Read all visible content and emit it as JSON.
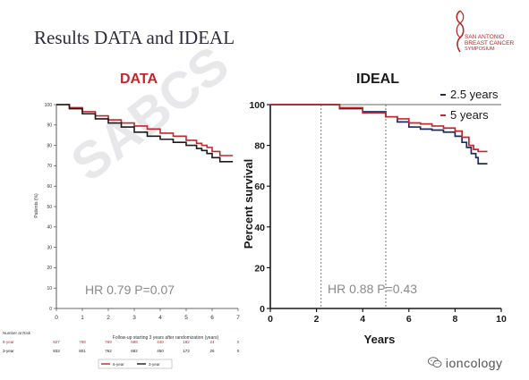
{
  "slide": {
    "title": "Results DATA and IDEAL",
    "watermark": "SABCS",
    "logo": {
      "line1": "SAN ANTONIO",
      "line2": "BREAST CANCER",
      "line3": "SYMPOSIUM"
    },
    "social": {
      "text": "ioncology",
      "icon": "wechat-icon"
    }
  },
  "colors": {
    "red": "#c0282d",
    "black": "#1a1a1a",
    "navy": "#1f2a5e",
    "hrText": "#8a8a8a",
    "title": "#2b2b3a"
  },
  "chart_data": [
    {
      "type": "line",
      "title": "DATA",
      "xlabel": "Follow-up starting 3 years after randomization (years)",
      "ylabel": "Patients (%)",
      "xlim": [
        0,
        7
      ],
      "ylim": [
        0,
        100
      ],
      "x_ticks": [
        "0",
        "1",
        "2",
        "3",
        "4",
        "5",
        "6",
        "7"
      ],
      "y_ticks": [
        "0",
        "10",
        "20",
        "30",
        "40",
        "50",
        "60",
        "70",
        "80",
        "90",
        "100"
      ],
      "annotation": "HR 0.79  P=0.07",
      "series": [
        {
          "name": "6-year",
          "color": "#c0282d",
          "x": [
            0,
            0.5,
            1,
            1.5,
            2,
            2.5,
            3,
            3.5,
            4,
            4.5,
            5,
            5.4,
            5.6,
            5.8,
            6,
            6.3,
            6.5,
            6.8
          ],
          "y": [
            100,
            98.5,
            96.5,
            94.5,
            92.5,
            91,
            89.5,
            88,
            86,
            84.5,
            82.5,
            81,
            80,
            79,
            77,
            75,
            75,
            75
          ]
        },
        {
          "name": "3-year",
          "color": "#1a1a1a",
          "x": [
            0,
            0.5,
            1,
            1.5,
            2,
            2.5,
            3,
            3.5,
            4,
            4.5,
            5,
            5.4,
            5.6,
            5.8,
            6,
            6.3,
            6.5,
            6.8
          ],
          "y": [
            100,
            98,
            95.5,
            93,
            91,
            89,
            86.5,
            84.5,
            83,
            81.5,
            80,
            78.5,
            77.5,
            76,
            74,
            72,
            72,
            72
          ]
        }
      ],
      "risk_table": {
        "header": "Number at Risk",
        "rows": [
          {
            "label": "6-year",
            "values": [
              "827",
              "798",
              "769",
              "698",
              "440",
              "182",
              "24",
              "0"
            ]
          },
          {
            "label": "3-year",
            "values": [
              "833",
              "801",
              "762",
              "682",
              "450",
              "173",
              "26",
              "0"
            ]
          }
        ]
      },
      "legend": [
        "6-year",
        "3-year"
      ]
    },
    {
      "type": "line",
      "title": "IDEAL",
      "xlabel": "Years",
      "ylabel": "Percent survival",
      "xlim": [
        0,
        10
      ],
      "ylim": [
        0,
        100
      ],
      "x_ticks": [
        "0",
        "2",
        "4",
        "6",
        "8",
        "10"
      ],
      "y_ticks": [
        "0",
        "20",
        "40",
        "60",
        "80",
        "100"
      ],
      "vlines": [
        2.2,
        5.0
      ],
      "annotation": "HR 0.88  P=0.43",
      "series": [
        {
          "name": "2.5 years",
          "color": "#1f2a5e",
          "x": [
            0,
            2.2,
            3,
            4,
            5,
            5.5,
            6,
            6.5,
            7,
            7.5,
            8,
            8.3,
            8.5,
            8.7,
            8.9,
            9.0,
            9.4
          ],
          "y": [
            100,
            100,
            98,
            96.5,
            94,
            91.5,
            89,
            88,
            87.5,
            86.5,
            84.5,
            81.5,
            79,
            76,
            74,
            71,
            71
          ]
        },
        {
          "name": "5 years",
          "color": "#c0282d",
          "x": [
            0,
            2.2,
            3,
            4,
            5,
            5.5,
            6,
            6.5,
            7,
            7.5,
            8,
            8.3,
            8.6,
            8.8,
            9.0,
            9.4
          ],
          "y": [
            100,
            100,
            98.5,
            96,
            94,
            93,
            91,
            90.5,
            89.5,
            88.5,
            87,
            84,
            80,
            78,
            77,
            77
          ]
        }
      ],
      "legend": [
        "2.5 years",
        "5 years"
      ]
    }
  ]
}
